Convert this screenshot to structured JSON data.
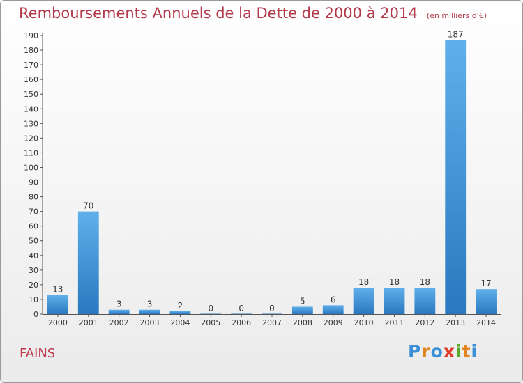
{
  "chart_data": {
    "type": "bar",
    "title": "Remboursements Annuels de la Dette de 2000 à 2014",
    "unit": "(en milliers d'€)",
    "categories": [
      "2000",
      "2001",
      "2002",
      "2003",
      "2004",
      "2005",
      "2006",
      "2007",
      "2008",
      "2009",
      "2010",
      "2011",
      "2012",
      "2013",
      "2014"
    ],
    "values": [
      13,
      70,
      3,
      3,
      2,
      0,
      0,
      0,
      5,
      6,
      18,
      18,
      18,
      187,
      17
    ],
    "data_labels": [
      "13",
      "70",
      "3",
      "3",
      "2",
      "0",
      "0",
      "0",
      "5",
      "6",
      "18",
      "18",
      "18",
      "187",
      "17"
    ],
    "ylim": [
      0,
      190
    ],
    "yticks": [
      "0",
      "10",
      "20",
      "30",
      "40",
      "50",
      "60",
      "70",
      "80",
      "90",
      "100",
      "110",
      "120",
      "130",
      "140",
      "150",
      "160",
      "170",
      "180",
      "190"
    ],
    "grid": false,
    "bar_color": "#4a9fe0"
  },
  "place_name": "FAINS",
  "brand": {
    "letters": [
      {
        "char": "P",
        "color": "#3a8fd6"
      },
      {
        "char": "r",
        "color": "#e2841d"
      },
      {
        "char": "o",
        "color": "#3a8fd6"
      },
      {
        "char": "x",
        "color": "#e23b2a"
      },
      {
        "char": "i",
        "color": "#5aaa2a"
      },
      {
        "char": "t",
        "color": "#e2841d"
      },
      {
        "char": "i",
        "color": "#3a8fd6"
      }
    ]
  }
}
